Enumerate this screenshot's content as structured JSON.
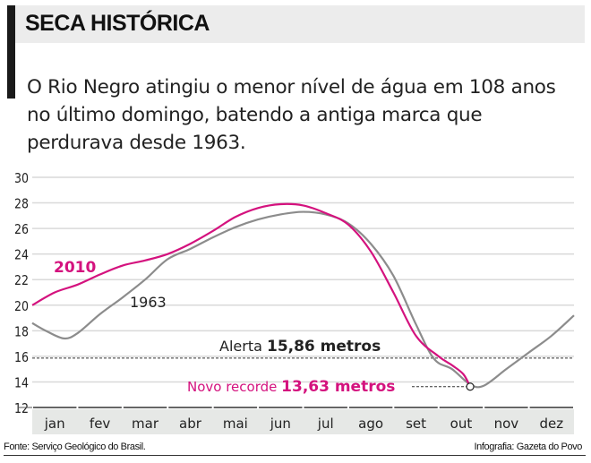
{
  "header": {
    "title": "SECA HISTÓRICA",
    "subtitle": "O Rio Negro atingiu o menor nível de água em 108 anos no último domingo, batendo a antiga marca que perdurava desde 1963."
  },
  "footer": {
    "source": "Fonte: Serviço Geológico do Brasil.",
    "credit": "Infografia: Gazeta do Povo"
  },
  "colors": {
    "series_2010": "#d4127e",
    "series_1963": "#8c8c8c",
    "grid": "#d9d9d9",
    "month_band": "#e6e8e6"
  },
  "chart_data": {
    "type": "line",
    "ylim": [
      12,
      30
    ],
    "yticks": [
      12,
      14,
      16,
      18,
      20,
      22,
      24,
      26,
      28,
      30
    ],
    "categories": [
      "jan",
      "fev",
      "mar",
      "abr",
      "mai",
      "jun",
      "jul",
      "ago",
      "set",
      "out",
      "nov",
      "dez"
    ],
    "grid": true,
    "series": [
      {
        "name": "2010",
        "color": "#d4127e",
        "x": [
          0,
          0.5,
          1,
          1.5,
          2,
          2.5,
          3,
          3.5,
          4,
          4.5,
          5,
          5.5,
          6,
          6.5,
          7,
          7.5,
          8,
          8.5,
          9,
          9.3,
          9.55,
          9.7
        ],
        "values": [
          20.0,
          21.0,
          21.6,
          22.4,
          23.1,
          23.5,
          24.0,
          24.8,
          25.8,
          26.9,
          27.6,
          27.9,
          27.8,
          27.2,
          26.3,
          24.2,
          21.0,
          17.6,
          16.0,
          15.3,
          14.6,
          13.63
        ]
      },
      {
        "name": "1963",
        "color": "#8c8c8c",
        "x": [
          0,
          0.3,
          0.7,
          1,
          1.5,
          2,
          2.5,
          3,
          3.5,
          4,
          4.5,
          5,
          5.5,
          6,
          6.5,
          7,
          7.5,
          8,
          8.5,
          8.9,
          9.3,
          9.7,
          10,
          10.5,
          11,
          11.5,
          12
        ],
        "values": [
          18.6,
          18.0,
          17.4,
          17.8,
          19.3,
          20.6,
          22.0,
          23.6,
          24.4,
          25.3,
          26.1,
          26.7,
          27.1,
          27.3,
          27.1,
          26.4,
          24.8,
          22.3,
          18.5,
          15.8,
          15.0,
          13.8,
          13.7,
          15.0,
          16.3,
          17.6,
          19.2
        ]
      }
    ],
    "annotations": {
      "alert": {
        "label": "Alerta",
        "value_label": "15,86 metros",
        "value": 15.86
      },
      "record": {
        "label": "Novo recorde",
        "value_label": "13,63 metros",
        "value": 13.63,
        "x": 9.7
      }
    }
  }
}
